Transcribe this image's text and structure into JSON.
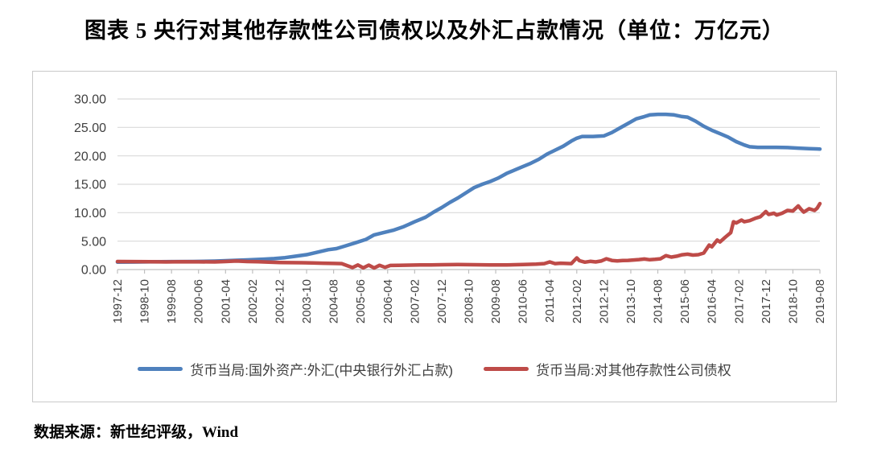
{
  "title": "图表 5  央行对其他存款性公司债权以及外汇占款情况（单位：万亿元）",
  "source": "数据来源：新世纪评级，Wind",
  "colors": {
    "blue": "#4F81BD",
    "red": "#BE4B48",
    "grid": "#D9D9D9",
    "axis": "#BFBFBF",
    "tick_text": "#404040",
    "frame_border": "#C9C9C9"
  },
  "chart_data": {
    "type": "line",
    "title": "央行对其他存款性公司债权以及外汇占款情况",
    "unit": "万亿元",
    "grid": "horizontal",
    "legend_position": "bottom",
    "ylim": [
      0,
      30
    ],
    "ytick_step": 5,
    "ytick_decimals": 2,
    "x_months_max": 260,
    "x_tick_interval_months": 10,
    "x_tick_labels": [
      "1997-12",
      "1998-10",
      "1999-08",
      "2000-06",
      "2001-04",
      "2002-02",
      "2002-12",
      "2003-10",
      "2004-08",
      "2005-06",
      "2006-04",
      "2007-02",
      "2007-12",
      "2008-10",
      "2009-08",
      "2010-06",
      "2011-04",
      "2012-02",
      "2012-12",
      "2013-10",
      "2014-08",
      "2015-06",
      "2016-04",
      "2017-02",
      "2017-12",
      "2018-10",
      "2019-08"
    ],
    "series": [
      {
        "name": "货币当局:国外资产:外汇(中央银行外汇占款)",
        "color": "#4F81BD",
        "points": [
          [
            0,
            1.3
          ],
          [
            6,
            1.33
          ],
          [
            12,
            1.36
          ],
          [
            20,
            1.4
          ],
          [
            28,
            1.42
          ],
          [
            36,
            1.48
          ],
          [
            42,
            1.58
          ],
          [
            48,
            1.7
          ],
          [
            54,
            1.83
          ],
          [
            58,
            1.92
          ],
          [
            62,
            2.1
          ],
          [
            66,
            2.35
          ],
          [
            70,
            2.62
          ],
          [
            74,
            3.05
          ],
          [
            78,
            3.5
          ],
          [
            81,
            3.68
          ],
          [
            84,
            4.1
          ],
          [
            88,
            4.7
          ],
          [
            92,
            5.3
          ],
          [
            95,
            6.1
          ],
          [
            98,
            6.45
          ],
          [
            102,
            6.9
          ],
          [
            106,
            7.55
          ],
          [
            110,
            8.4
          ],
          [
            114,
            9.2
          ],
          [
            117,
            10.1
          ],
          [
            120,
            10.9
          ],
          [
            123,
            11.8
          ],
          [
            126,
            12.6
          ],
          [
            129,
            13.5
          ],
          [
            132,
            14.4
          ],
          [
            135,
            15.0
          ],
          [
            138,
            15.5
          ],
          [
            141,
            16.1
          ],
          [
            144,
            16.9
          ],
          [
            147,
            17.5
          ],
          [
            150,
            18.1
          ],
          [
            153,
            18.7
          ],
          [
            156,
            19.4
          ],
          [
            159,
            20.3
          ],
          [
            162,
            21.0
          ],
          [
            165,
            21.7
          ],
          [
            168,
            22.6
          ],
          [
            170,
            23.1
          ],
          [
            172,
            23.4
          ],
          [
            176,
            23.4
          ],
          [
            180,
            23.5
          ],
          [
            183,
            24.1
          ],
          [
            186,
            24.9
          ],
          [
            189,
            25.7
          ],
          [
            192,
            26.5
          ],
          [
            195,
            26.9
          ],
          [
            197,
            27.2
          ],
          [
            200,
            27.3
          ],
          [
            203,
            27.3
          ],
          [
            206,
            27.2
          ],
          [
            209,
            26.9
          ],
          [
            211,
            26.8
          ],
          [
            214,
            26.1
          ],
          [
            217,
            25.2
          ],
          [
            220,
            24.5
          ],
          [
            223,
            23.9
          ],
          [
            226,
            23.3
          ],
          [
            229,
            22.5
          ],
          [
            232,
            21.9
          ],
          [
            234,
            21.6
          ],
          [
            237,
            21.5
          ],
          [
            240,
            21.5
          ],
          [
            244,
            21.5
          ],
          [
            248,
            21.45
          ],
          [
            252,
            21.35
          ],
          [
            256,
            21.25
          ],
          [
            260,
            21.2
          ]
        ]
      },
      {
        "name": "货币当局:对其他存款性公司债权",
        "color": "#BE4B48",
        "points": [
          [
            0,
            1.42
          ],
          [
            6,
            1.4
          ],
          [
            12,
            1.37
          ],
          [
            18,
            1.35
          ],
          [
            24,
            1.38
          ],
          [
            30,
            1.36
          ],
          [
            36,
            1.35
          ],
          [
            40,
            1.42
          ],
          [
            44,
            1.5
          ],
          [
            48,
            1.42
          ],
          [
            52,
            1.38
          ],
          [
            56,
            1.3
          ],
          [
            60,
            1.25
          ],
          [
            64,
            1.22
          ],
          [
            68,
            1.2
          ],
          [
            72,
            1.18
          ],
          [
            76,
            1.12
          ],
          [
            80,
            1.08
          ],
          [
            83,
            1.05
          ],
          [
            85,
            0.7
          ],
          [
            87,
            0.35
          ],
          [
            89,
            0.8
          ],
          [
            91,
            0.3
          ],
          [
            93,
            0.78
          ],
          [
            95,
            0.28
          ],
          [
            97,
            0.75
          ],
          [
            99,
            0.4
          ],
          [
            101,
            0.72
          ],
          [
            104,
            0.75
          ],
          [
            108,
            0.78
          ],
          [
            112,
            0.8
          ],
          [
            116,
            0.82
          ],
          [
            120,
            0.85
          ],
          [
            126,
            0.88
          ],
          [
            132,
            0.85
          ],
          [
            138,
            0.8
          ],
          [
            144,
            0.82
          ],
          [
            150,
            0.88
          ],
          [
            155,
            0.95
          ],
          [
            158,
            1.05
          ],
          [
            160,
            1.35
          ],
          [
            162,
            1.05
          ],
          [
            164,
            1.12
          ],
          [
            166,
            1.08
          ],
          [
            168,
            1.05
          ],
          [
            170,
            2.05
          ],
          [
            171,
            1.55
          ],
          [
            173,
            1.3
          ],
          [
            175,
            1.45
          ],
          [
            177,
            1.35
          ],
          [
            179,
            1.5
          ],
          [
            181,
            1.9
          ],
          [
            183,
            1.6
          ],
          [
            185,
            1.52
          ],
          [
            187,
            1.58
          ],
          [
            189,
            1.62
          ],
          [
            191,
            1.68
          ],
          [
            193,
            1.75
          ],
          [
            195,
            1.85
          ],
          [
            197,
            1.72
          ],
          [
            199,
            1.8
          ],
          [
            201,
            1.9
          ],
          [
            203,
            2.45
          ],
          [
            205,
            2.2
          ],
          [
            207,
            2.35
          ],
          [
            209,
            2.6
          ],
          [
            211,
            2.7
          ],
          [
            213,
            2.55
          ],
          [
            215,
            2.62
          ],
          [
            217,
            2.9
          ],
          [
            219,
            4.3
          ],
          [
            220,
            4.0
          ],
          [
            222,
            5.2
          ],
          [
            223,
            4.85
          ],
          [
            225,
            5.7
          ],
          [
            227,
            6.5
          ],
          [
            228,
            8.4
          ],
          [
            229,
            8.2
          ],
          [
            231,
            8.7
          ],
          [
            232,
            8.4
          ],
          [
            234,
            8.6
          ],
          [
            236,
            9.0
          ],
          [
            238,
            9.3
          ],
          [
            240,
            10.2
          ],
          [
            241,
            9.7
          ],
          [
            243,
            9.9
          ],
          [
            244,
            9.6
          ],
          [
            246,
            9.9
          ],
          [
            248,
            10.4
          ],
          [
            250,
            10.3
          ],
          [
            252,
            11.2
          ],
          [
            253,
            10.6
          ],
          [
            254,
            10.1
          ],
          [
            256,
            10.7
          ],
          [
            258,
            10.4
          ],
          [
            259,
            10.8
          ],
          [
            260,
            11.6
          ]
        ]
      }
    ]
  }
}
